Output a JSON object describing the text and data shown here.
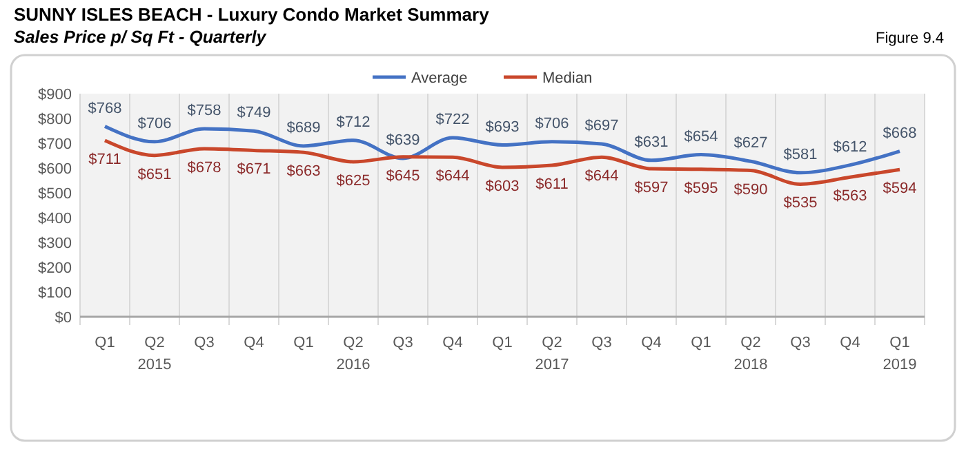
{
  "chart_data": {
    "type": "line",
    "title": "SUNNY ISLES BEACH - Luxury Condo Market Summary",
    "subtitle": "Sales Price p/ Sq Ft - Quarterly",
    "annotations": [
      "Figure 9.4"
    ],
    "categories": [
      "Q1",
      "Q2\n2015",
      "Q3",
      "Q4",
      "Q1",
      "Q2\n2016",
      "Q3",
      "Q4",
      "Q1",
      "Q2\n2017",
      "Q3",
      "Q4",
      "Q1",
      "Q2\n2018",
      "Q3",
      "Q4",
      "Q1\n2019"
    ],
    "series": [
      {
        "name": "Average",
        "color": "#4472c4",
        "values": [
          768,
          706,
          758,
          749,
          689,
          712,
          639,
          722,
          693,
          706,
          697,
          631,
          654,
          627,
          581,
          612,
          668
        ],
        "value_labels": [
          "$768",
          "$706",
          "$758",
          "$749",
          "$689",
          "$712",
          "$639",
          "$722",
          "$693",
          "$706",
          "$697",
          "$631",
          "$654",
          "$627",
          "$581",
          "$612",
          "$668"
        ]
      },
      {
        "name": "Median",
        "color": "#c9472b",
        "values": [
          711,
          651,
          678,
          671,
          663,
          625,
          645,
          644,
          603,
          611,
          644,
          597,
          595,
          590,
          535,
          563,
          594
        ],
        "value_labels": [
          "$711",
          "$651",
          "$678",
          "$671",
          "$663",
          "$625",
          "$645",
          "$644",
          "$603",
          "$611",
          "$644",
          "$597",
          "$595",
          "$590",
          "$535",
          "$563",
          "$594"
        ]
      }
    ],
    "ylim": [
      0,
      900
    ],
    "yticks": [
      {
        "value": 0,
        "label": "$0"
      },
      {
        "value": 100,
        "label": "$100"
      },
      {
        "value": 200,
        "label": "$200"
      },
      {
        "value": 300,
        "label": "$300"
      },
      {
        "value": 400,
        "label": "$400"
      },
      {
        "value": 500,
        "label": "$500"
      },
      {
        "value": 600,
        "label": "$600"
      },
      {
        "value": 700,
        "label": "$700"
      },
      {
        "value": 800,
        "label": "$800"
      },
      {
        "value": 900,
        "label": "$900"
      }
    ],
    "grid": "x",
    "legend": "top",
    "marker": "none",
    "line_style": "solid"
  }
}
